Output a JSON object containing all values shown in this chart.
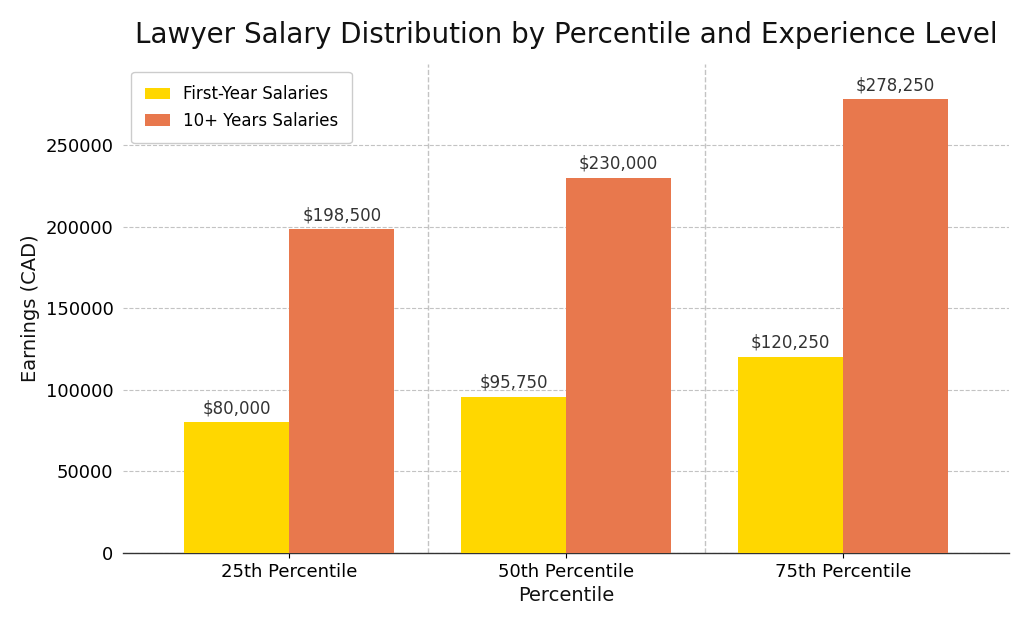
{
  "title": "Lawyer Salary Distribution by Percentile and Experience Level",
  "xlabel": "Percentile",
  "ylabel": "Earnings (CAD)",
  "categories": [
    "25th Percentile",
    "50th Percentile",
    "75th Percentile"
  ],
  "first_year_salaries": [
    80000,
    95750,
    120250
  ],
  "ten_plus_salaries": [
    198500,
    230000,
    278250
  ],
  "first_year_color": "#FFD700",
  "ten_plus_color": "#E8784D",
  "first_year_label": "First-Year Salaries",
  "ten_plus_label": "10+ Years Salaries",
  "bar_width": 0.38,
  "ylim": [
    0,
    300000
  ],
  "yticks": [
    0,
    50000,
    100000,
    150000,
    200000,
    250000
  ],
  "background_color": "#FFFFFF",
  "grid_color": "#AAAAAA",
  "title_fontsize": 20,
  "axis_label_fontsize": 14,
  "tick_fontsize": 13,
  "annotation_fontsize": 12,
  "legend_fontsize": 12
}
